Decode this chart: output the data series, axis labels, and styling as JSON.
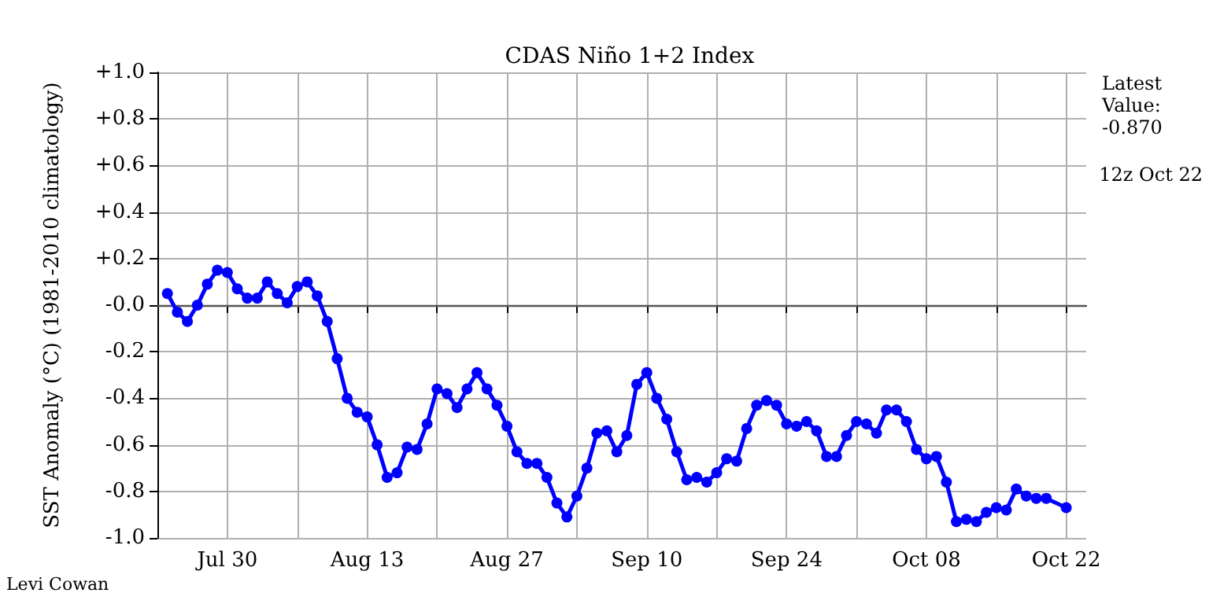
{
  "chart_data": {
    "type": "line",
    "title": "CDAS Niño 1+2 Index",
    "ylabel": "SST Anomaly (°C) (1981-2010 climatology)",
    "annotations": [
      "Latest\nValue:\n-0.870",
      "12z Oct 22",
      "Levi Cowan"
    ],
    "series": [
      {
        "color": "#0000ff",
        "x": [
          "--07-24",
          "--07-25",
          "--07-26",
          "--07-27",
          "--07-28",
          "--07-29",
          "--07-30",
          "--07-31",
          "--08-01",
          "--08-02",
          "--08-03",
          "--08-04",
          "--08-05",
          "--08-06",
          "--08-07",
          "--08-08",
          "--08-09",
          "--08-10",
          "--08-11",
          "--08-12",
          "--08-13",
          "--08-14",
          "--08-15",
          "--08-16",
          "--08-17",
          "--08-18",
          "--08-19",
          "--08-20",
          "--08-21",
          "--08-22",
          "--08-23",
          "--08-24",
          "--08-25",
          "--08-26",
          "--08-27",
          "--08-28",
          "--08-29",
          "--08-30",
          "--08-31",
          "--09-01",
          "--09-02",
          "--09-03",
          "--09-04",
          "--09-05",
          "--09-06",
          "--09-07",
          "--09-08",
          "--09-09",
          "--09-10",
          "--09-11",
          "--09-12",
          "--09-13",
          "--09-14",
          "--09-15",
          "--09-16",
          "--09-17",
          "--09-18",
          "--09-19",
          "--09-20",
          "--09-21",
          "--09-22",
          "--09-23",
          "--09-24",
          "--09-25",
          "--09-26",
          "--09-27",
          "--09-28",
          "--09-29",
          "--09-30",
          "--10-01",
          "--10-02",
          "--10-03",
          "--10-04",
          "--10-05",
          "--10-06",
          "--10-07",
          "--10-08",
          "--10-09",
          "--10-10",
          "--10-11",
          "--10-12",
          "--10-13",
          "--10-14",
          "--10-15",
          "--10-16",
          "--10-17",
          "--10-18",
          "--10-19",
          "--10-20",
          "--10-22"
        ],
        "values": [
          0.05,
          -0.03,
          -0.07,
          0.0,
          0.09,
          0.15,
          0.14,
          0.07,
          0.03,
          0.03,
          0.1,
          0.05,
          0.01,
          0.08,
          0.1,
          0.04,
          -0.07,
          -0.23,
          -0.4,
          -0.46,
          -0.48,
          -0.6,
          -0.74,
          -0.72,
          -0.61,
          -0.62,
          -0.51,
          -0.36,
          -0.38,
          -0.44,
          -0.36,
          -0.29,
          -0.36,
          -0.43,
          -0.52,
          -0.63,
          -0.68,
          -0.68,
          -0.74,
          -0.85,
          -0.91,
          -0.82,
          -0.7,
          -0.55,
          -0.54,
          -0.63,
          -0.56,
          -0.34,
          -0.29,
          -0.4,
          -0.49,
          -0.63,
          -0.75,
          -0.74,
          -0.76,
          -0.72,
          -0.66,
          -0.67,
          -0.53,
          -0.43,
          -0.41,
          -0.43,
          -0.51,
          -0.52,
          -0.5,
          -0.54,
          -0.65,
          -0.65,
          -0.56,
          -0.5,
          -0.51,
          -0.55,
          -0.45,
          -0.45,
          -0.5,
          -0.62,
          -0.66,
          -0.65,
          -0.76,
          -0.93,
          -0.92,
          -0.93,
          -0.89,
          -0.87,
          -0.88,
          -0.79,
          -0.82,
          -0.83,
          -0.83,
          -0.87
        ]
      }
    ],
    "xlim": [
      "--07-23",
      "--10-24"
    ],
    "xticks": [
      {
        "value": "--07-23",
        "label": null
      },
      {
        "value": "--07-30",
        "label": "Jul 30"
      },
      {
        "value": "--08-06",
        "label": null
      },
      {
        "value": "--08-13",
        "label": "Aug 13"
      },
      {
        "value": "--08-20",
        "label": null
      },
      {
        "value": "--08-27",
        "label": "Aug 27"
      },
      {
        "value": "--09-03",
        "label": null
      },
      {
        "value": "--09-10",
        "label": "Sep 10"
      },
      {
        "value": "--09-17",
        "label": null
      },
      {
        "value": "--09-24",
        "label": "Sep 24"
      },
      {
        "value": "--10-01",
        "label": null
      },
      {
        "value": "--10-08",
        "label": "Oct 08"
      },
      {
        "value": "--10-15",
        "label": null
      },
      {
        "value": "--10-22",
        "label": "Oct 22"
      }
    ],
    "ylim": [
      -1,
      1
    ],
    "yticks": [
      {
        "value": -1,
        "label": "-1.0"
      },
      {
        "value": -0.8,
        "label": "-0.8"
      },
      {
        "value": -0.6,
        "label": "-0.6"
      },
      {
        "value": -0.4,
        "label": "-0.4"
      },
      {
        "value": -0.2,
        "label": "-0.2"
      },
      {
        "value": 0,
        "label": "-0.0"
      },
      {
        "value": 0.2,
        "label": "+0.2"
      },
      {
        "value": 0.4,
        "label": "+0.4"
      },
      {
        "value": 0.6,
        "label": "+0.6"
      },
      {
        "value": 0.8,
        "label": "+0.8"
      },
      {
        "value": 1,
        "label": "+1.0"
      }
    ],
    "ref_lines": [
      {
        "axis": "y",
        "value": 0,
        "color": "#555555"
      }
    ],
    "grid": true,
    "marker": "circle",
    "line_style": "solid"
  }
}
